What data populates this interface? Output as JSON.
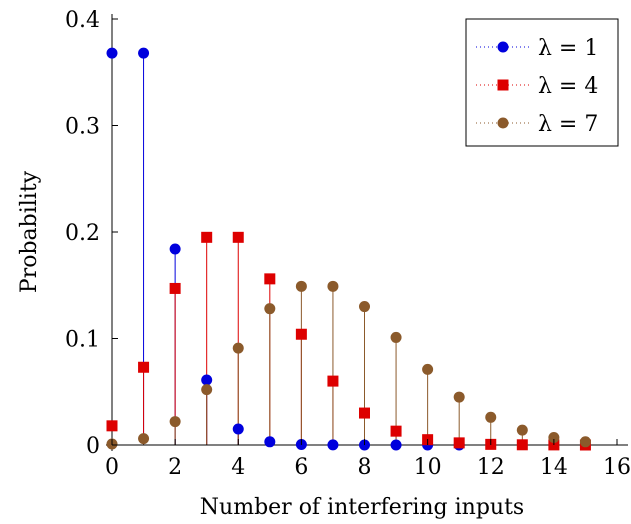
{
  "chart_data": {
    "type": "scatter",
    "subtype": "stem",
    "title": "",
    "xlabel": "Number of interfering inputs",
    "ylabel": "Probability",
    "xlim": [
      0,
      16
    ],
    "ylim": [
      0,
      0.4
    ],
    "xticks": [
      0,
      2,
      4,
      6,
      8,
      10,
      12,
      14,
      16
    ],
    "xtick_labels": [
      "0",
      "2",
      "4",
      "6",
      "8",
      "10",
      "12",
      "14",
      "16"
    ],
    "yticks": [
      0,
      0.1,
      0.2,
      0.3,
      0.4
    ],
    "ytick_labels": [
      "0",
      "0.1",
      "0.2",
      "0.3",
      "0.4"
    ],
    "grid": false,
    "legend_position": "top-right",
    "series": [
      {
        "name": "λ = 1",
        "color": "#0000dd",
        "marker": "circle",
        "x": [
          0,
          1,
          2,
          3,
          4,
          5,
          6,
          7,
          8,
          9,
          10,
          11
        ],
        "values": [
          0.368,
          0.368,
          0.184,
          0.061,
          0.015,
          0.003,
          0.0005,
          0.0001,
          0.0,
          0.0,
          0.0,
          0.0
        ]
      },
      {
        "name": "λ = 4",
        "color": "#dd0000",
        "marker": "square",
        "x": [
          0,
          1,
          2,
          3,
          4,
          5,
          6,
          7,
          8,
          9,
          10,
          11,
          12,
          13,
          14,
          15
        ],
        "values": [
          0.018,
          0.073,
          0.147,
          0.195,
          0.195,
          0.156,
          0.104,
          0.06,
          0.03,
          0.013,
          0.005,
          0.002,
          0.0006,
          0.0002,
          0.0001,
          0.0
        ]
      },
      {
        "name": "λ = 7",
        "color": "#8b5a2b",
        "marker": "circle",
        "x": [
          0,
          1,
          2,
          3,
          4,
          5,
          6,
          7,
          8,
          9,
          10,
          11,
          12,
          13,
          14,
          15
        ],
        "values": [
          0.0009,
          0.006,
          0.022,
          0.052,
          0.091,
          0.128,
          0.149,
          0.149,
          0.13,
          0.101,
          0.071,
          0.045,
          0.026,
          0.014,
          0.007,
          0.003
        ]
      }
    ]
  }
}
